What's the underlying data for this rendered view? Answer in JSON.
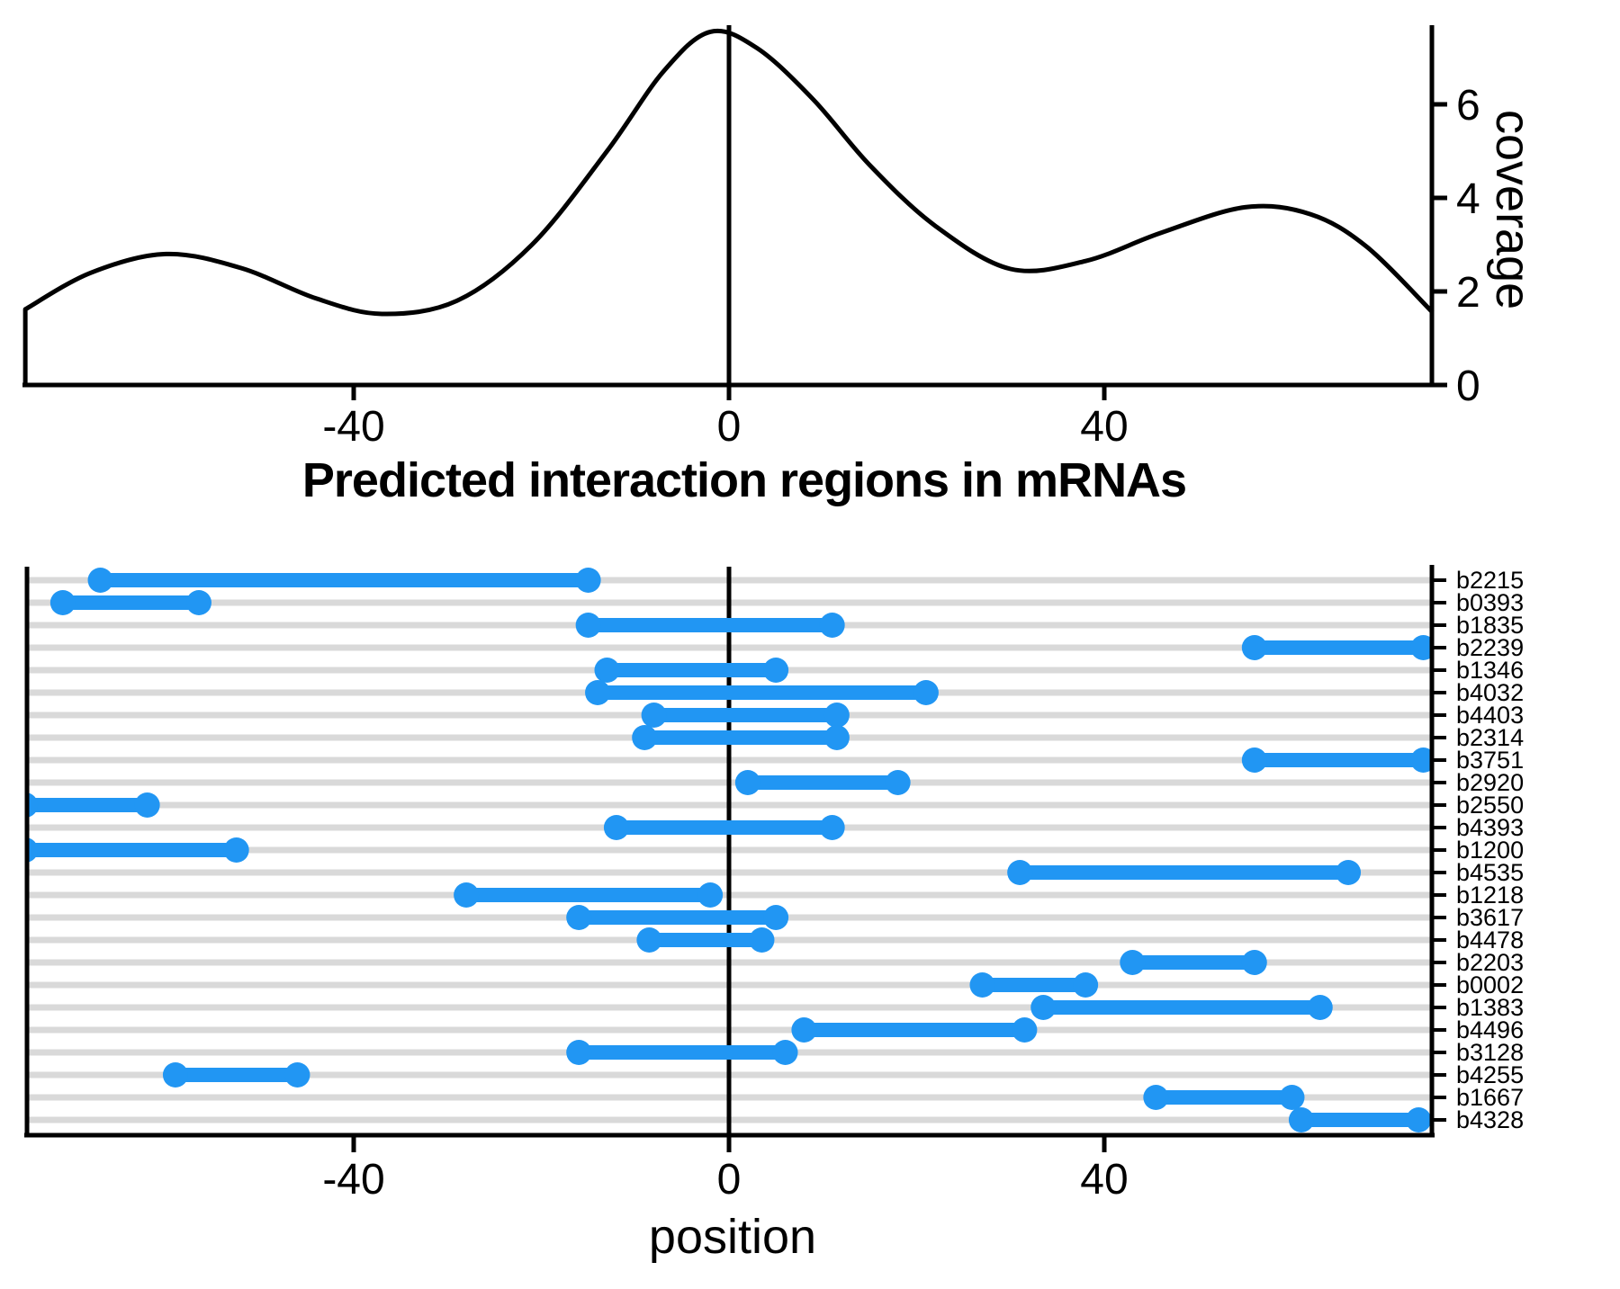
{
  "title": "Predicted interaction regions in mRNAs",
  "labels": {
    "coverage_axis": "coverage",
    "position_axis": "position"
  },
  "colors": {
    "segment": "#2196F3",
    "grid_line": "#D9D9D9",
    "axis": "#000000",
    "background": "#FFFFFF"
  },
  "chart_data": [
    {
      "type": "area",
      "name": "coverage-density",
      "ylabel": "coverage",
      "ylabel_side": "right",
      "xlim": [
        -75,
        75
      ],
      "ylim": [
        0,
        7.65
      ],
      "x_ticks": [
        -40,
        0,
        40
      ],
      "y_ticks": [
        0,
        2,
        4,
        6
      ],
      "grid": false,
      "center_line_x": 0,
      "curve_x": [
        -75,
        -68,
        -60,
        -52,
        -44,
        -37,
        -29,
        -21,
        -13,
        -7,
        -2,
        3,
        9,
        15,
        22,
        30,
        38,
        46,
        55,
        62,
        68,
        75
      ],
      "curve_y": [
        1.62,
        2.4,
        2.8,
        2.5,
        1.85,
        1.52,
        1.8,
        3.0,
        5.0,
        6.7,
        7.55,
        7.2,
        6.1,
        4.7,
        3.4,
        2.48,
        2.65,
        3.25,
        3.8,
        3.65,
        2.95,
        1.55
      ]
    },
    {
      "type": "segments",
      "name": "interaction-regions",
      "title": "Predicted interaction regions in mRNAs",
      "xlabel": "position",
      "xlim": [
        -75,
        75
      ],
      "x_ticks": [
        -40,
        0,
        40
      ],
      "center_line_x": 0,
      "rows": [
        {
          "label": "b2215",
          "start": -67,
          "end": -15
        },
        {
          "label": "b0393",
          "start": -71,
          "end": -56.5
        },
        {
          "label": "b1835",
          "start": -15,
          "end": 11
        },
        {
          "label": "b2239",
          "start": 56,
          "end": 74
        },
        {
          "label": "b1346",
          "start": -13,
          "end": 5
        },
        {
          "label": "b4032",
          "start": -14,
          "end": 21
        },
        {
          "label": "b4403",
          "start": -8,
          "end": 11.5
        },
        {
          "label": "b2314",
          "start": -9,
          "end": 11.5
        },
        {
          "label": "b3751",
          "start": 56,
          "end": 74
        },
        {
          "label": "b2920",
          "start": 2,
          "end": 18
        },
        {
          "label": "b2550",
          "start": -75,
          "end": -62
        },
        {
          "label": "b4393",
          "start": -12,
          "end": 11
        },
        {
          "label": "b1200",
          "start": -75,
          "end": -52.5
        },
        {
          "label": "b4535",
          "start": 31,
          "end": 66
        },
        {
          "label": "b1218",
          "start": -28,
          "end": -2
        },
        {
          "label": "b3617",
          "start": -16,
          "end": 5
        },
        {
          "label": "b4478",
          "start": -8.5,
          "end": 3.5
        },
        {
          "label": "b2203",
          "start": 43,
          "end": 56
        },
        {
          "label": "b0002",
          "start": 27,
          "end": 38
        },
        {
          "label": "b1383",
          "start": 33.5,
          "end": 63
        },
        {
          "label": "b4496",
          "start": 8,
          "end": 31.5
        },
        {
          "label": "b3128",
          "start": -16,
          "end": 6
        },
        {
          "label": "b4255",
          "start": -59,
          "end": -46
        },
        {
          "label": "b1667",
          "start": 45.5,
          "end": 60
        },
        {
          "label": "b4328",
          "start": 61,
          "end": 73.5
        }
      ]
    }
  ]
}
